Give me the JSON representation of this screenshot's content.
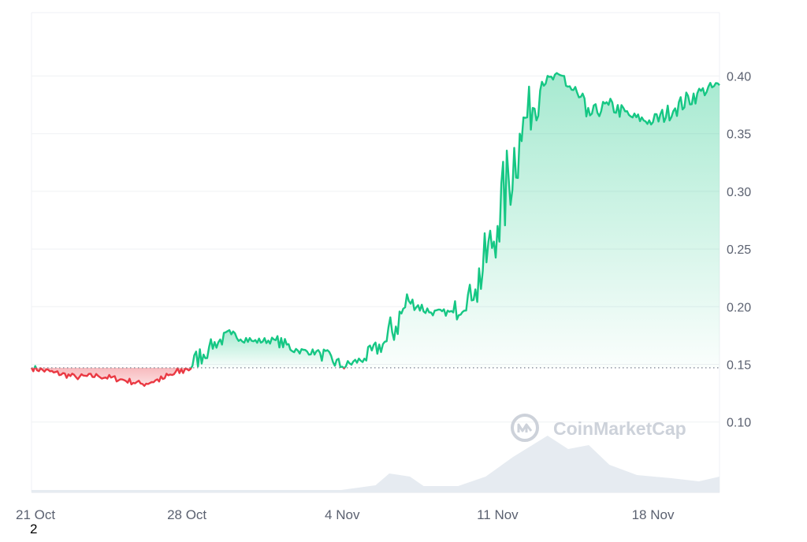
{
  "chart_data": {
    "type": "area",
    "x_axis": {
      "ticks": [
        {
          "label": "21 Oct",
          "value": "2024-10-21"
        },
        {
          "label": "28 Oct",
          "value": "2024-10-28"
        },
        {
          "label": "4 Nov",
          "value": "2024-11-04"
        },
        {
          "label": "11 Nov",
          "value": "2024-11-11"
        },
        {
          "label": "18 Nov",
          "value": "2024-11-18"
        }
      ],
      "range": [
        "2024-10-21",
        "2024-11-21"
      ]
    },
    "y_axis": {
      "ticks": [
        0.1,
        0.15,
        0.2,
        0.25,
        0.3,
        0.35,
        0.4
      ],
      "tick_labels": [
        "0.10",
        "0.15",
        "0.20",
        "0.25",
        "0.30",
        "0.35",
        "0.40"
      ],
      "range": [
        0.039,
        0.455
      ],
      "position": "right"
    },
    "grid": "horizontal",
    "baseline": 0.147,
    "colors": {
      "up": "#16c784",
      "down": "#ea3943",
      "volume": "#e6ebf1",
      "grid": "#eff1f4",
      "axis_text": "#5b6170"
    },
    "series": [
      {
        "values": [
          [
            "2024-10-21",
            0.147
          ],
          [
            "2024-10-22",
            0.143
          ],
          [
            "2024-10-23",
            0.139
          ],
          [
            "2024-10-24",
            0.14
          ],
          [
            "2024-10-25",
            0.137
          ],
          [
            "2024-10-26",
            0.133
          ],
          [
            "2024-10-27",
            0.138
          ],
          [
            "2024-10-28",
            0.146
          ],
          [
            "2024-10-29",
            0.165
          ],
          [
            "2024-10-30",
            0.176
          ],
          [
            "2024-10-31",
            0.17
          ],
          [
            "2024-11-01",
            0.171
          ],
          [
            "2024-11-02",
            0.162
          ],
          [
            "2024-11-03",
            0.16
          ],
          [
            "2024-11-04",
            0.148
          ],
          [
            "2024-11-05",
            0.155
          ],
          [
            "2024-11-06",
            0.17
          ],
          [
            "2024-11-07",
            0.205
          ],
          [
            "2024-11-08",
            0.195
          ],
          [
            "2024-11-09",
            0.195
          ],
          [
            "2024-11-10",
            0.215
          ],
          [
            "2024-11-11",
            0.27
          ],
          [
            "2024-11-12",
            0.35
          ],
          [
            "2024-11-13",
            0.395
          ],
          [
            "2024-11-14",
            0.4
          ],
          [
            "2024-11-15",
            0.365
          ],
          [
            "2024-11-16",
            0.375
          ],
          [
            "2024-11-17",
            0.365
          ],
          [
            "2024-11-18",
            0.36
          ],
          [
            "2024-11-19",
            0.372
          ],
          [
            "2024-11-20",
            0.385
          ],
          [
            "2024-11-21",
            0.392
          ]
        ]
      }
    ]
  },
  "watermark": "CoinMarketCap",
  "footnote": "2"
}
